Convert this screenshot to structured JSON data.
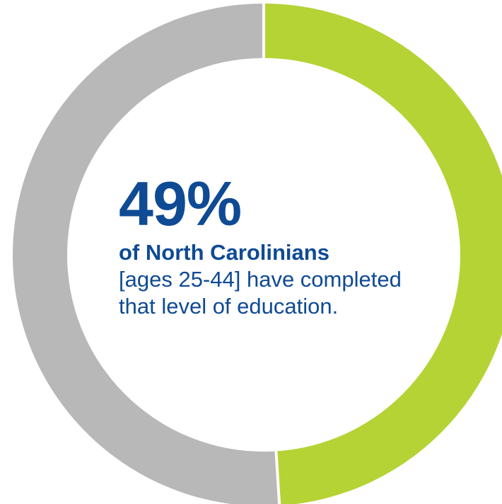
{
  "chart_data": {
    "type": "pie",
    "variant": "donut",
    "slices": [
      {
        "label": "",
        "value": 51,
        "color": "#b8b8b8"
      },
      {
        "label": "",
        "value": 49,
        "color": "#b5d334"
      }
    ],
    "headline_value": "49%",
    "subject": "of North Carolinians",
    "detail": "[ages 25-44] have completed that level of education."
  },
  "colors": {
    "text": "#0f4a94",
    "highlight": "#b5d334",
    "remainder": "#b8b8b8"
  }
}
